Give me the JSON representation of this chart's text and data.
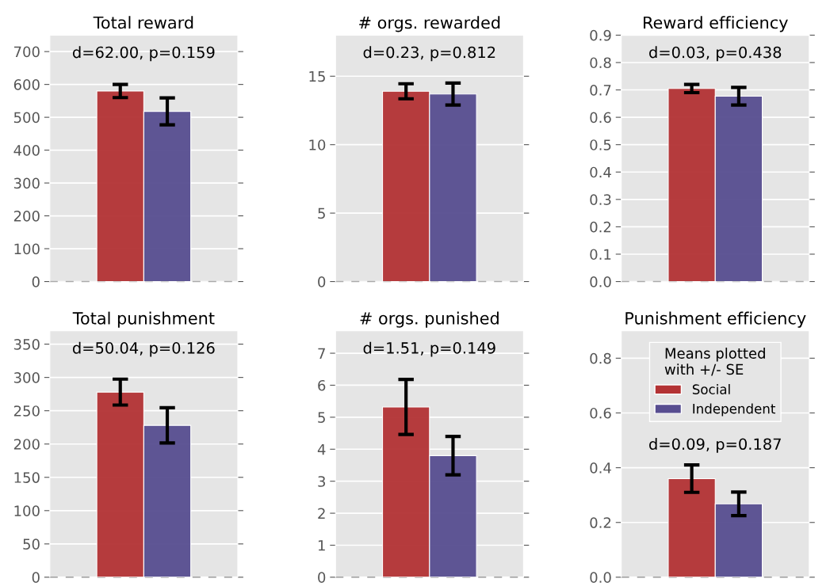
{
  "chart_data": [
    {
      "type": "bar",
      "title": "Total reward",
      "categories": [
        null
      ],
      "annotations": [
        "d=62.00, p=0.159"
      ],
      "ylim": [
        0,
        750
      ],
      "yticks": [
        0,
        100,
        200,
        300,
        400,
        500,
        600,
        700
      ],
      "grid": "y",
      "ref_lines": [
        {
          "axis": "y",
          "value": 0,
          "color": "#aaaaaa",
          "line_style": "dashed"
        }
      ],
      "series": [
        {
          "color": "#b33234",
          "values": [
            580
          ],
          "errors": [
            20
          ]
        },
        {
          "color": "#574d90",
          "values": [
            518
          ],
          "errors": [
            41
          ]
        }
      ]
    },
    {
      "type": "bar",
      "title": "# orgs. rewarded",
      "categories": [
        null
      ],
      "annotations": [
        "d=0.23, p=0.812"
      ],
      "ylim": [
        0,
        18
      ],
      "yticks": [
        0,
        5,
        10,
        15
      ],
      "grid": "y",
      "ref_lines": [
        {
          "axis": "y",
          "value": 0,
          "color": "#aaaaaa",
          "line_style": "dashed"
        }
      ],
      "series": [
        {
          "color": "#b33234",
          "values": [
            13.9
          ],
          "errors": [
            0.55
          ]
        },
        {
          "color": "#574d90",
          "values": [
            13.7
          ],
          "errors": [
            0.8
          ]
        }
      ]
    },
    {
      "type": "bar",
      "title": "Reward efficiency",
      "categories": [
        null
      ],
      "annotations": [
        "d=0.03, p=0.438"
      ],
      "ylim": [
        0,
        0.9
      ],
      "yticks": [
        {
          "value": 0,
          "label": "0.0"
        },
        0.1,
        0.2,
        0.3,
        0.4,
        0.5,
        0.6,
        0.7,
        0.8,
        0.9
      ],
      "grid": "y",
      "ref_lines": [
        {
          "axis": "y",
          "value": 0,
          "color": "#aaaaaa",
          "line_style": "dashed"
        }
      ],
      "series": [
        {
          "color": "#b33234",
          "values": [
            0.705
          ],
          "errors": [
            0.015
          ]
        },
        {
          "color": "#574d90",
          "values": [
            0.677
          ],
          "errors": [
            0.032
          ]
        }
      ]
    },
    {
      "type": "bar",
      "title": "Total punishment",
      "categories": [
        null
      ],
      "annotations": [
        "d=50.04, p=0.126"
      ],
      "ylim": [
        0,
        370
      ],
      "yticks": [
        0,
        50,
        100,
        150,
        200,
        250,
        300,
        350
      ],
      "grid": "y",
      "ref_lines": [
        {
          "axis": "y",
          "value": 0,
          "color": "#aaaaaa",
          "line_style": "dashed"
        }
      ],
      "series": [
        {
          "color": "#b33234",
          "values": [
            278
          ],
          "errors": [
            19.5
          ]
        },
        {
          "color": "#574d90",
          "values": [
            228
          ],
          "errors": [
            26.5
          ]
        }
      ]
    },
    {
      "type": "bar",
      "title": "# orgs. punished",
      "categories": [
        null
      ],
      "annotations": [
        "d=1.51, p=0.149"
      ],
      "ylim": [
        0,
        7.7
      ],
      "yticks": [
        0,
        1,
        2,
        3,
        4,
        5,
        6,
        7
      ],
      "grid": "y",
      "ref_lines": [
        {
          "axis": "y",
          "value": 0,
          "color": "#aaaaaa",
          "line_style": "dashed"
        }
      ],
      "series": [
        {
          "color": "#b33234",
          "values": [
            5.32
          ],
          "errors": [
            0.86
          ]
        },
        {
          "color": "#574d90",
          "values": [
            3.8
          ],
          "errors": [
            0.6
          ]
        }
      ]
    },
    {
      "type": "bar",
      "title": "Punishment efficiency",
      "categories": [
        null
      ],
      "annotations": [
        "d=0.09, p=0.187"
      ],
      "ylim": [
        0,
        0.9
      ],
      "yticks": [
        {
          "value": 0,
          "label": "0.0"
        },
        0.2,
        0.4,
        0.6,
        0.8
      ],
      "grid": "y",
      "legend": "top",
      "legend_title": "Means plotted\nwith +/- SE",
      "ref_lines": [
        {
          "axis": "y",
          "value": 0,
          "color": "#aaaaaa",
          "line_style": "dashed"
        }
      ],
      "series": [
        {
          "name": "Social",
          "color": "#b33234",
          "values": [
            0.36
          ],
          "errors": [
            0.05
          ]
        },
        {
          "name": "Independent",
          "color": "#574d90",
          "values": [
            0.268
          ],
          "errors": [
            0.043
          ]
        }
      ]
    }
  ]
}
